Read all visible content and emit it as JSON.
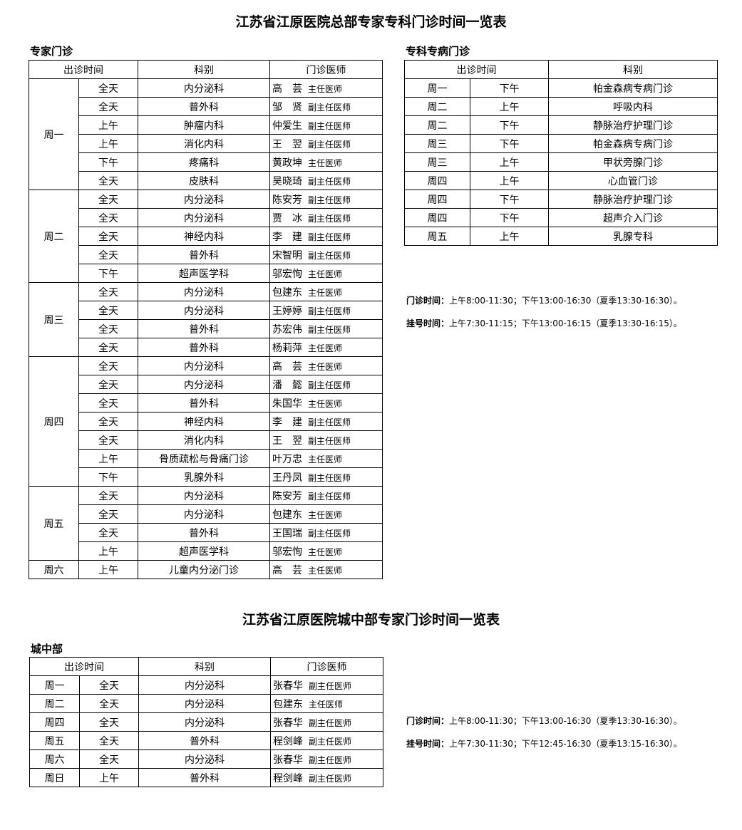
{
  "main_title": "江苏省江原医院总部专家专科门诊时间一览表",
  "expert": {
    "label": "专家门诊",
    "headers": [
      "出诊时间",
      "科别",
      "门诊医师"
    ],
    "rows": [
      [
        "周一",
        "全天",
        "内分泌科",
        "高　芸",
        "主任医师"
      ],
      [
        "周一",
        "全天",
        "普外科",
        "邹　贤",
        "副主任医师"
      ],
      [
        "周一",
        "上午",
        "肿瘤内科",
        "仲爱生",
        "副主任医师"
      ],
      [
        "周一",
        "上午",
        "消化内科",
        "王　翌",
        "副主任医师"
      ],
      [
        "周一",
        "下午",
        "疼痛科",
        "黄政坤",
        "主任医师"
      ],
      [
        "周一",
        "全天",
        "皮肤科",
        "吴晓琦",
        "副主任医师"
      ],
      [
        "周二",
        "全天",
        "内分泌科",
        "陈安芳",
        "副主任医师"
      ],
      [
        "周二",
        "全天",
        "内分泌科",
        "贾　冰",
        "副主任医师"
      ],
      [
        "周二",
        "全天",
        "神经内科",
        "李　建",
        "副主任医师"
      ],
      [
        "周二",
        "全天",
        "普外科",
        "宋智明",
        "副主任医师"
      ],
      [
        "周二",
        "下午",
        "超声医学科",
        "邬宏恂",
        "主任医师"
      ],
      [
        "周三",
        "全天",
        "内分泌科",
        "包建东",
        "主任医师"
      ],
      [
        "周三",
        "全天",
        "内分泌科",
        "王婷婷",
        "副主任医师"
      ],
      [
        "周三",
        "全天",
        "普外科",
        "苏宏伟",
        "副主任医师"
      ],
      [
        "周三",
        "全天",
        "普外科",
        "杨莉萍",
        "主任医师"
      ],
      [
        "周四",
        "全天",
        "内分泌科",
        "高　芸",
        "主任医师"
      ],
      [
        "周四",
        "全天",
        "内分泌科",
        "潘　懿",
        "副主任医师"
      ],
      [
        "周四",
        "全天",
        "普外科",
        "朱国华",
        "主任医师"
      ],
      [
        "周四",
        "全天",
        "神经内科",
        "李　建",
        "副主任医师"
      ],
      [
        "周四",
        "全天",
        "消化内科",
        "王　翌",
        "副主任医师"
      ],
      [
        "周四",
        "上午",
        "骨质疏松与骨痛门诊",
        "叶万忠",
        "主任医师"
      ],
      [
        "周四",
        "下午",
        "乳腺外科",
        "王丹凤",
        "副主任医师"
      ],
      [
        "周五",
        "全天",
        "内分泌科",
        "陈安芳",
        "副主任医师"
      ],
      [
        "周五",
        "全天",
        "内分泌科",
        "包建东",
        "主任医师"
      ],
      [
        "周五",
        "全天",
        "普外科",
        "王国瑞",
        "副主任医师"
      ],
      [
        "周五",
        "上午",
        "超声医学科",
        "邬宏恂",
        "主任医师"
      ],
      [
        "周六",
        "上午",
        "儿童内分泌门诊",
        "高　芸",
        "主任医师"
      ]
    ]
  },
  "specialty": {
    "label": "专科专病门诊",
    "headers": [
      "出诊时间",
      "科别"
    ],
    "rows": [
      [
        "周一",
        "下午",
        "帕金森病专病门诊"
      ],
      [
        "周二",
        "上午",
        "呼吸内科"
      ],
      [
        "周二",
        "下午",
        "静脉治疗护理门诊"
      ],
      [
        "周三",
        "下午",
        "帕金森病专病门诊"
      ],
      [
        "周三",
        "上午",
        "甲状旁腺门诊"
      ],
      [
        "周四",
        "上午",
        "心血管门诊"
      ],
      [
        "周四",
        "下午",
        "静脉治疗护理门诊"
      ],
      [
        "周四",
        "下午",
        "超声介入门诊"
      ],
      [
        "周五",
        "上午",
        "乳腺专科"
      ]
    ]
  },
  "hq_notes": [
    {
      "label": "门诊时间：",
      "text": "上午8:00-11:30；下午13:00-16:30（夏季13:30-16:30）。"
    },
    {
      "label": "挂号时间：",
      "text": "上午7:30-11:15；下午13:00-16:15（夏季13:30-16:15）。"
    }
  ],
  "city_title": "江苏省江原医院城中部专家门诊时间一览表",
  "city": {
    "label": "城中部",
    "headers": [
      "出诊时间",
      "科别",
      "门诊医师"
    ],
    "rows": [
      [
        "周一",
        "全天",
        "内分泌科",
        "张春华",
        "副主任医师"
      ],
      [
        "周二",
        "全天",
        "内分泌科",
        "包建东",
        "主任医师"
      ],
      [
        "周四",
        "全天",
        "内分泌科",
        "张春华",
        "副主任医师"
      ],
      [
        "周五",
        "全天",
        "普外科",
        "程剑峰",
        "副主任医师"
      ],
      [
        "周六",
        "全天",
        "内分泌科",
        "张春华",
        "副主任医师"
      ],
      [
        "周日",
        "上午",
        "普外科",
        "程剑峰",
        "副主任医师"
      ]
    ]
  },
  "city_notes": [
    {
      "label": "门诊时间：",
      "text": "上午8:00-11:30；下午13:00-16:30（夏季13:30-16:30）。"
    },
    {
      "label": "挂号时间：",
      "text": "上午7:30-11:30；下午12:45-16:30（夏季13:15-16:30）。"
    }
  ]
}
